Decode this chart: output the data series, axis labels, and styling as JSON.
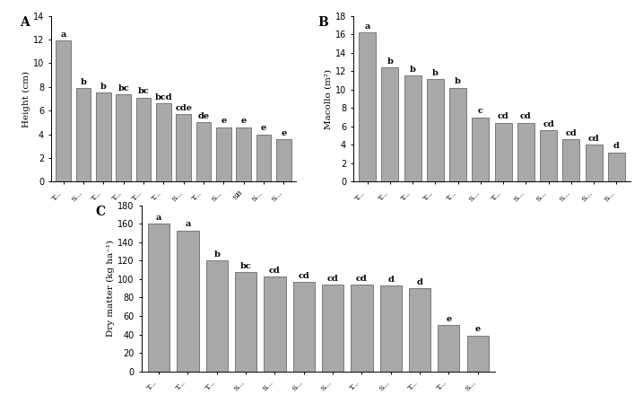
{
  "panel_A": {
    "label": "A",
    "ylabel": "Height (cm)",
    "ylim": [
      0,
      14
    ],
    "yticks": [
      0,
      2,
      4,
      6,
      8,
      10,
      12,
      14
    ],
    "values": [
      11.9,
      7.9,
      7.5,
      7.4,
      7.1,
      6.6,
      5.7,
      5.0,
      4.6,
      4.6,
      4.0,
      3.6
    ],
    "letters": [
      "a",
      "b",
      "b",
      "bc",
      "bc",
      "bcd",
      "cde",
      "de",
      "e",
      "e",
      "e",
      "e"
    ],
    "xlabels": [
      "T...",
      "S...",
      "T...",
      "T...",
      "T...",
      "T...",
      "S...",
      "T...",
      "S...",
      "SB",
      "S...",
      "S..."
    ]
  },
  "panel_B": {
    "label": "B",
    "ylabel": "Macollo (m²)",
    "ylim": [
      0,
      18
    ],
    "yticks": [
      0,
      2,
      4,
      6,
      8,
      10,
      12,
      14,
      16,
      18
    ],
    "values": [
      16.2,
      12.4,
      11.5,
      11.1,
      10.2,
      7.0,
      6.4,
      6.4,
      5.6,
      4.6,
      4.0,
      3.2
    ],
    "letters": [
      "a",
      "b",
      "b",
      "b",
      "b",
      "c",
      "cd",
      "cd",
      "cd",
      "cd",
      "cd",
      "d"
    ],
    "xlabels": [
      "T...",
      "T...",
      "T...",
      "T...",
      "T...",
      "S...",
      "T...",
      "S...",
      "S...",
      "S...",
      "S...",
      "S..."
    ]
  },
  "panel_C": {
    "label": "C",
    "ylabel": "Dry matter (kg ha⁻¹)",
    "ylim": [
      0,
      180
    ],
    "yticks": [
      0,
      20,
      40,
      60,
      80,
      100,
      120,
      140,
      160,
      180
    ],
    "values": [
      160,
      153,
      120,
      108,
      103,
      97,
      94,
      94,
      93,
      90,
      50,
      39
    ],
    "letters": [
      "a",
      "a",
      "b",
      "bc",
      "cd",
      "cd",
      "cd",
      "cd",
      "d",
      "d",
      "e",
      "e"
    ],
    "xlabels": [
      "T...",
      "T...",
      "T...",
      "S...",
      "S...",
      "S...",
      "S...",
      "T...",
      "S...",
      "T...",
      "T...",
      "S..."
    ]
  },
  "bar_color": "#a8a8a8",
  "bar_edgecolor": "#555555",
  "bar_linewidth": 0.5,
  "letter_fontsize": 7,
  "xlabel_fontsize": 6,
  "ylabel_fontsize": 7.5,
  "panel_label_fontsize": 10,
  "tick_fontsize": 7
}
